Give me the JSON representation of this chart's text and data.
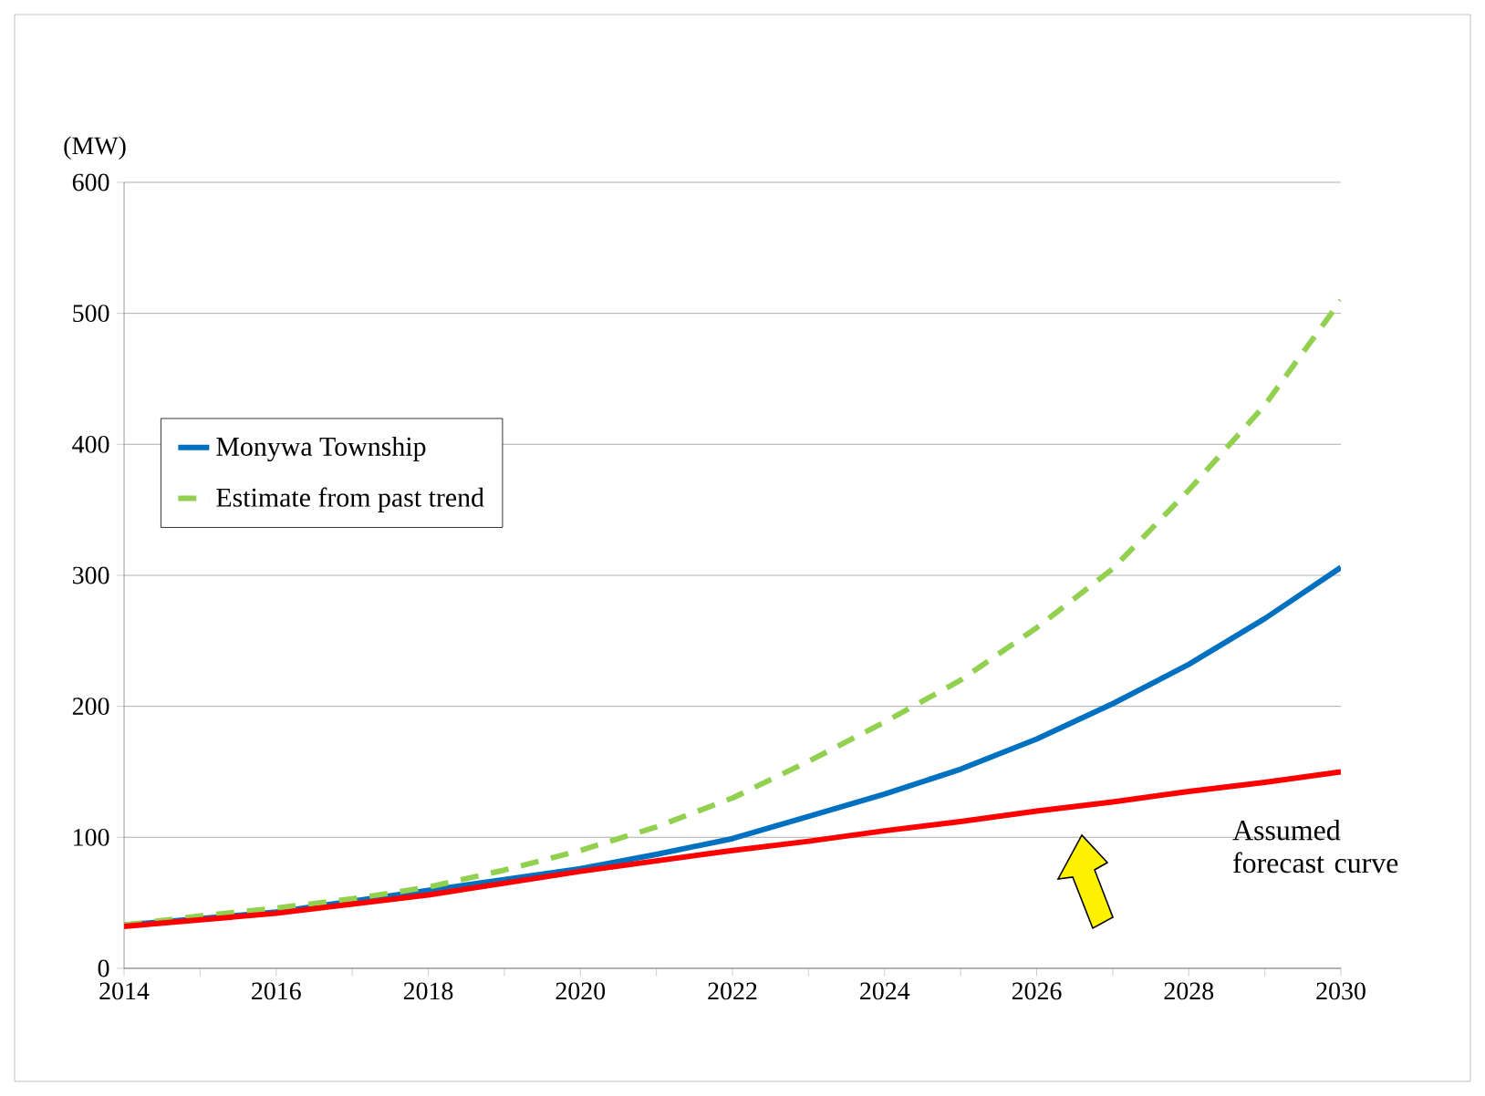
{
  "chart_data": {
    "type": "line",
    "ylabel": "(MW)",
    "x": [
      2014,
      2015,
      2016,
      2017,
      2018,
      2019,
      2020,
      2021,
      2022,
      2023,
      2024,
      2025,
      2026,
      2027,
      2028,
      2029,
      2030
    ],
    "series": [
      {
        "name": "Monywa Township",
        "color": "#0070c0",
        "line_style": "solid",
        "values": [
          33,
          38,
          43,
          null,
          null,
          null,
          76,
          87,
          99,
          116,
          133,
          152,
          175,
          202,
          232,
          267,
          306
        ]
      },
      {
        "name": "Estimate from past trend",
        "color": "#92d050",
        "line_style": "dashed",
        "values": [
          33,
          40,
          46,
          53,
          62,
          75,
          90,
          108,
          130,
          158,
          188,
          220,
          260,
          305,
          365,
          430,
          510
        ]
      },
      {
        "color": "#ff0000",
        "line_style": "solid",
        "values": [
          32,
          37,
          42,
          49,
          56,
          65,
          74,
          82,
          90,
          97,
          105,
          112,
          120,
          127,
          135,
          142,
          150
        ]
      }
    ],
    "xlim": [
      2014,
      2030
    ],
    "xticks": [
      2014,
      {
        "value": 2015,
        "label": null
      },
      2016,
      {
        "value": 2017,
        "label": null
      },
      2018,
      {
        "value": 2019,
        "label": null
      },
      2020,
      {
        "value": 2021,
        "label": null
      },
      2022,
      {
        "value": 2023,
        "label": null
      },
      2024,
      {
        "value": 2025,
        "label": null
      },
      2026,
      {
        "value": 2027,
        "label": null
      },
      2028,
      {
        "value": 2029,
        "label": null
      },
      2030
    ],
    "ylim": [
      0,
      600
    ],
    "yticks": [
      0,
      100,
      200,
      300,
      400,
      500,
      600
    ],
    "grid": "y",
    "legend": "top left",
    "marker": "none",
    "annotations": [
      "Assumed forecast curve"
    ]
  }
}
